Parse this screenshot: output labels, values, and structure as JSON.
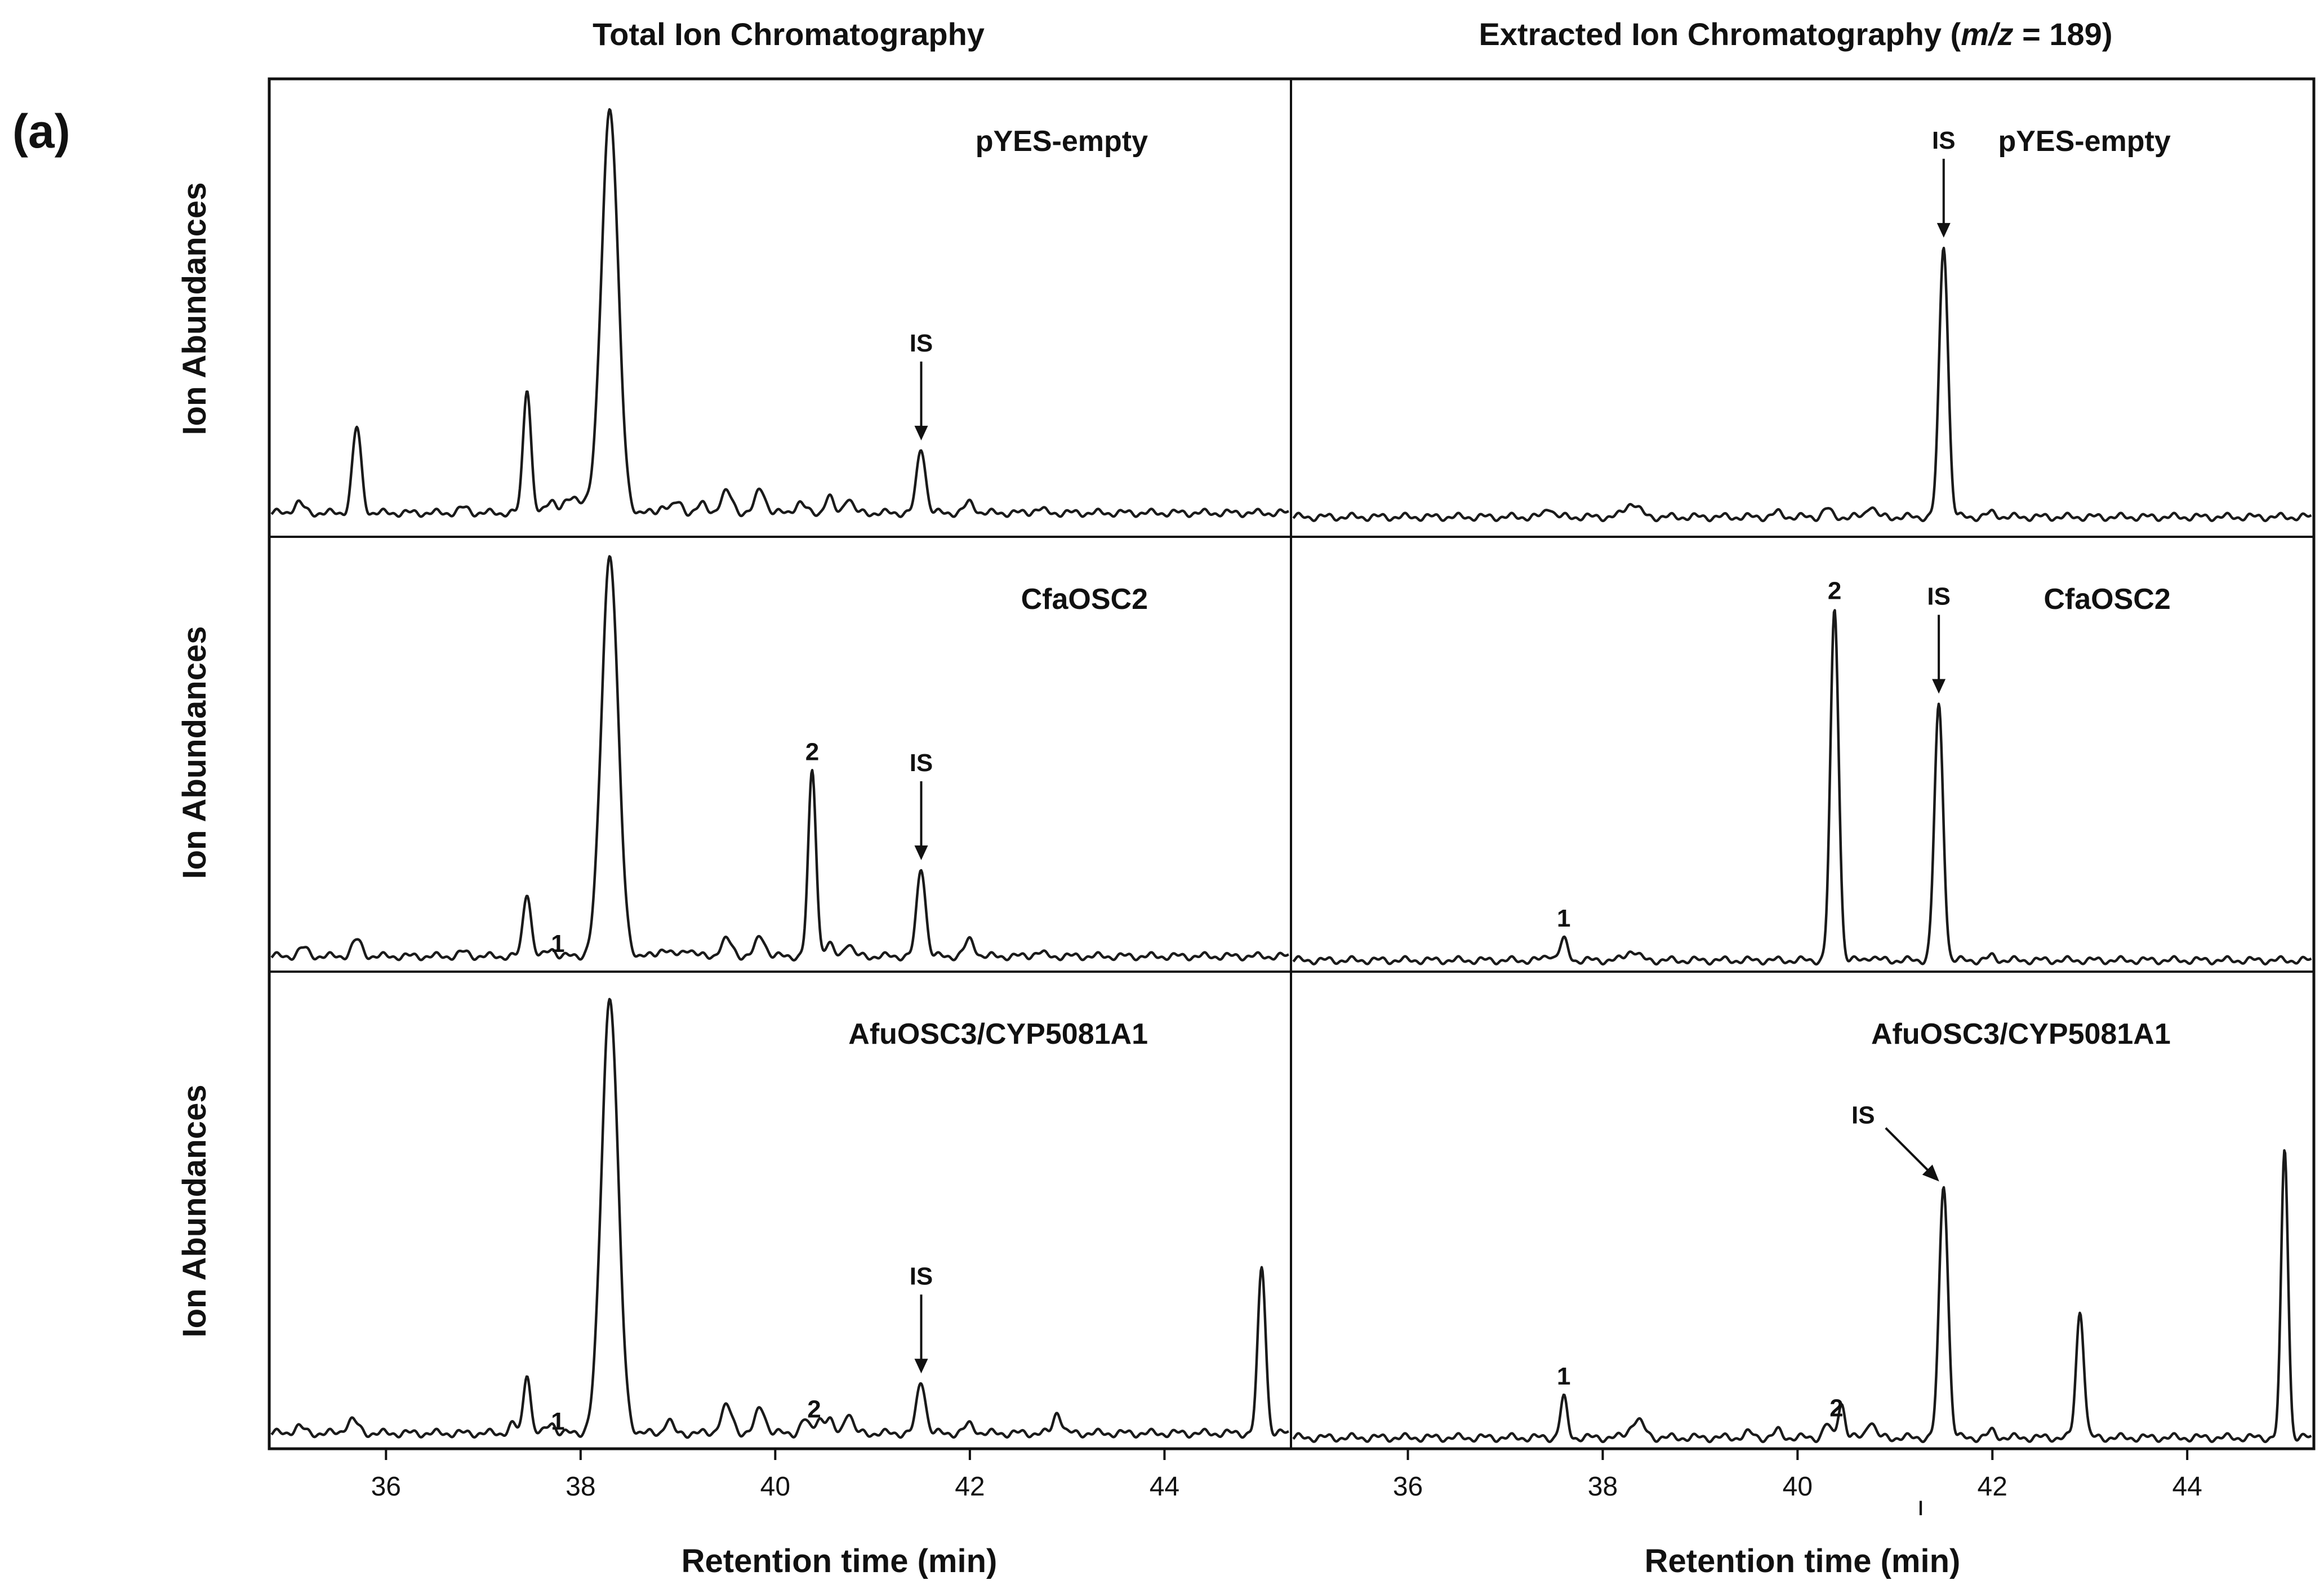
{
  "figure": {
    "panel_tag": "(a)",
    "stray_tick_mark": "ı"
  },
  "chart_data": [
    {
      "id": "tic",
      "type": "line",
      "title": "Total Ion Chromatography",
      "title_suffix": "",
      "xlabel": "Retention time (min)",
      "ylabel": "Ion Abundances",
      "xlim": [
        34.8,
        45.3
      ],
      "ylim": [
        0,
        100
      ],
      "xticks": [
        36,
        38,
        40,
        42,
        44
      ],
      "baseline": 2,
      "traces": [
        {
          "sample": "pYES-empty",
          "peaks": [
            {
              "x": 35.1,
              "y": 2.5,
              "w": 0.05
            },
            {
              "x": 35.7,
              "y": 21,
              "w": 0.045
            },
            {
              "x": 36.8,
              "y": 1.2,
              "w": 0.05
            },
            {
              "x": 37.45,
              "y": 31,
              "w": 0.04
            },
            {
              "x": 37.7,
              "y": 3,
              "w": 0.04
            },
            {
              "x": 37.95,
              "y": 3.5,
              "w": 0.12
            },
            {
              "x": 38.3,
              "y": 100,
              "w": 0.085
            },
            {
              "x": 38.85,
              "y": 2,
              "w": 0.04
            },
            {
              "x": 39.0,
              "y": 2.5,
              "w": 0.05
            },
            {
              "x": 39.25,
              "y": 2,
              "w": 0.05
            },
            {
              "x": 39.5,
              "y": 5,
              "w": 0.06
            },
            {
              "x": 39.85,
              "y": 6,
              "w": 0.05
            },
            {
              "x": 40.25,
              "y": 2.5,
              "w": 0.05
            },
            {
              "x": 40.55,
              "y": 4,
              "w": 0.04
            },
            {
              "x": 40.75,
              "y": 4,
              "w": 0.04
            },
            {
              "x": 41.5,
              "y": 16,
              "w": 0.045
            },
            {
              "x": 42.0,
              "y": 2.5,
              "w": 0.05
            },
            {
              "x": 42.7,
              "y": 1,
              "w": 0.05
            }
          ],
          "annotations": [
            {
              "text": "IS",
              "x": 41.5,
              "arrow": "vertical"
            }
          ]
        },
        {
          "sample": "CfaOSC2",
          "peaks": [
            {
              "x": 35.15,
              "y": 2,
              "w": 0.05
            },
            {
              "x": 35.7,
              "y": 4,
              "w": 0.05
            },
            {
              "x": 36.8,
              "y": 1,
              "w": 0.05
            },
            {
              "x": 37.45,
              "y": 16,
              "w": 0.04
            },
            {
              "x": 37.7,
              "y": 2,
              "w": 0.04
            },
            {
              "x": 38.3,
              "y": 100,
              "w": 0.085
            },
            {
              "x": 38.85,
              "y": 2,
              "w": 0.05
            },
            {
              "x": 39.1,
              "y": 2,
              "w": 0.05
            },
            {
              "x": 39.5,
              "y": 4,
              "w": 0.06
            },
            {
              "x": 39.85,
              "y": 5,
              "w": 0.05
            },
            {
              "x": 40.38,
              "y": 46,
              "w": 0.04
            },
            {
              "x": 40.55,
              "y": 3,
              "w": 0.04
            },
            {
              "x": 40.75,
              "y": 3.5,
              "w": 0.04
            },
            {
              "x": 41.5,
              "y": 22,
              "w": 0.045
            },
            {
              "x": 42.0,
              "y": 4,
              "w": 0.05
            },
            {
              "x": 42.7,
              "y": 1,
              "w": 0.05
            }
          ],
          "annotations": [
            {
              "text": "1",
              "x": 37.65,
              "arrow": "none"
            },
            {
              "text": "2",
              "x": 40.38,
              "arrow": "none"
            },
            {
              "text": "IS",
              "x": 41.5,
              "arrow": "vertical"
            }
          ]
        },
        {
          "sample": "AfuOSC3/CYP5081A1",
          "peaks": [
            {
              "x": 35.1,
              "y": 1.5,
              "w": 0.05
            },
            {
              "x": 35.65,
              "y": 3,
              "w": 0.06
            },
            {
              "x": 37.3,
              "y": 2,
              "w": 0.04
            },
            {
              "x": 37.45,
              "y": 14,
              "w": 0.035
            },
            {
              "x": 37.7,
              "y": 2.5,
              "w": 0.04
            },
            {
              "x": 38.3,
              "y": 100,
              "w": 0.085
            },
            {
              "x": 38.9,
              "y": 3,
              "w": 0.04
            },
            {
              "x": 39.5,
              "y": 6,
              "w": 0.06
            },
            {
              "x": 39.85,
              "y": 6,
              "w": 0.05
            },
            {
              "x": 40.3,
              "y": 3,
              "w": 0.04
            },
            {
              "x": 40.45,
              "y": 3.5,
              "w": 0.04
            },
            {
              "x": 40.55,
              "y": 3,
              "w": 0.04
            },
            {
              "x": 40.75,
              "y": 5,
              "w": 0.04
            },
            {
              "x": 41.5,
              "y": 12,
              "w": 0.045
            },
            {
              "x": 42.0,
              "y": 2,
              "w": 0.05
            },
            {
              "x": 42.9,
              "y": 5,
              "w": 0.04
            },
            {
              "x": 45.0,
              "y": 38,
              "w": 0.04
            }
          ],
          "annotations": [
            {
              "text": "1",
              "x": 37.65,
              "arrow": "none"
            },
            {
              "text": "2",
              "x": 40.4,
              "arrow": "none"
            },
            {
              "text": "IS",
              "x": 41.5,
              "arrow": "vertical"
            }
          ]
        }
      ]
    },
    {
      "id": "eic",
      "type": "line",
      "title": "Extracted Ion Chromatography (",
      "title_italic": "m/z",
      "title_suffix": " = 189)",
      "xlabel": "Retention time (min)",
      "ylabel": "",
      "xlim": [
        34.8,
        45.3
      ],
      "ylim": [
        0,
        100
      ],
      "xticks": [
        36,
        38,
        40,
        42,
        44
      ],
      "baseline": 1,
      "traces": [
        {
          "sample": "pYES-empty",
          "peaks": [
            {
              "x": 37.45,
              "y": 2.5,
              "w": 0.04
            },
            {
              "x": 38.3,
              "y": 3.5,
              "w": 0.07
            },
            {
              "x": 39.8,
              "y": 1,
              "w": 0.05
            },
            {
              "x": 40.3,
              "y": 2,
              "w": 0.04
            },
            {
              "x": 40.75,
              "y": 3,
              "w": 0.04
            },
            {
              "x": 41.5,
              "y": 67,
              "w": 0.045
            },
            {
              "x": 42.0,
              "y": 1,
              "w": 0.05
            }
          ],
          "annotations": [
            {
              "text": "IS",
              "x": 41.5,
              "arrow": "vertical"
            }
          ]
        },
        {
          "sample": "CfaOSC2",
          "peaks": [
            {
              "x": 37.45,
              "y": 1.5,
              "w": 0.04
            },
            {
              "x": 37.6,
              "y": 5,
              "w": 0.04
            },
            {
              "x": 38.3,
              "y": 2.5,
              "w": 0.06
            },
            {
              "x": 40.38,
              "y": 87,
              "w": 0.042
            },
            {
              "x": 40.75,
              "y": 1,
              "w": 0.04
            },
            {
              "x": 41.45,
              "y": 63,
              "w": 0.045
            },
            {
              "x": 42.0,
              "y": 1,
              "w": 0.04
            }
          ],
          "annotations": [
            {
              "text": "1",
              "x": 37.6,
              "arrow": "none"
            },
            {
              "text": "2",
              "x": 40.38,
              "arrow": "none"
            },
            {
              "text": "IS",
              "x": 41.45,
              "arrow": "vertical"
            }
          ]
        },
        {
          "sample": "AfuOSC3/CYP5081A1",
          "peaks": [
            {
              "x": 37.6,
              "y": 9,
              "w": 0.035
            },
            {
              "x": 38.35,
              "y": 4,
              "w": 0.07
            },
            {
              "x": 39.5,
              "y": 1,
              "w": 0.05
            },
            {
              "x": 39.8,
              "y": 1.5,
              "w": 0.04
            },
            {
              "x": 40.3,
              "y": 3,
              "w": 0.035
            },
            {
              "x": 40.45,
              "y": 8,
              "w": 0.035
            },
            {
              "x": 40.75,
              "y": 4,
              "w": 0.04
            },
            {
              "x": 41.5,
              "y": 58,
              "w": 0.045
            },
            {
              "x": 42.0,
              "y": 1.5,
              "w": 0.04
            },
            {
              "x": 42.9,
              "y": 29,
              "w": 0.04
            },
            {
              "x": 45.0,
              "y": 66,
              "w": 0.035
            }
          ],
          "annotations": [
            {
              "text": "1",
              "x": 37.6,
              "arrow": "none"
            },
            {
              "text": "2",
              "x": 40.4,
              "arrow": "none"
            },
            {
              "text": "IS",
              "x": 41.5,
              "arrow": "diagonal"
            }
          ]
        }
      ]
    }
  ]
}
